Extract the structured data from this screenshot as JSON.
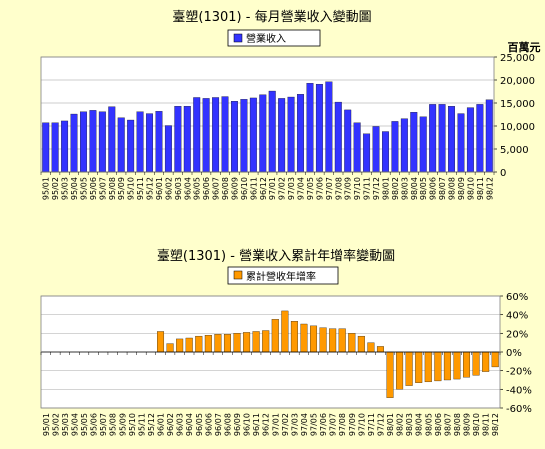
{
  "chart_data": [
    {
      "type": "bar",
      "title": "臺塑(1301) - 每月營業收入變動圖",
      "legend": {
        "label": "營業收入",
        "placement": "top-center"
      },
      "y_unit_label": "百萬元",
      "ylim": [
        0,
        25000
      ],
      "y_ticks": [
        0,
        5000,
        10000,
        15000,
        20000,
        25000
      ],
      "y_tick_labels": [
        "0",
        "5,000",
        "10,000",
        "15,000",
        "20,000",
        "25,000"
      ],
      "grid": true,
      "bar_color": "#3333ff",
      "categories": [
        "95/01",
        "95/02",
        "95/03",
        "95/04",
        "95/05",
        "95/06",
        "95/07",
        "95/08",
        "95/09",
        "95/10",
        "95/11",
        "95/12",
        "96/01",
        "96/02",
        "96/03",
        "96/04",
        "96/05",
        "96/06",
        "96/07",
        "96/08",
        "96/09",
        "96/10",
        "96/11",
        "96/12",
        "97/01",
        "97/02",
        "97/03",
        "97/04",
        "97/05",
        "97/06",
        "97/07",
        "97/08",
        "97/09",
        "97/10",
        "97/11",
        "97/12",
        "98/01",
        "98/02",
        "98/03",
        "98/04",
        "98/05",
        "98/06",
        "98/07",
        "98/08",
        "98/09",
        "98/10",
        "98/11",
        "98/12"
      ],
      "values": [
        10700,
        10700,
        11100,
        12600,
        13100,
        13400,
        13100,
        14200,
        11800,
        11300,
        13100,
        12700,
        13200,
        10100,
        14300,
        14300,
        16200,
        16000,
        16200,
        16400,
        15400,
        15800,
        16100,
        16800,
        17600,
        16000,
        16300,
        16900,
        19300,
        19100,
        19600,
        15200,
        13500,
        10700,
        8300,
        9900,
        8800,
        11000,
        11600,
        13000,
        12000,
        14700,
        14700,
        14300,
        12700,
        14000,
        14700,
        15700
      ]
    },
    {
      "type": "bar",
      "title": "臺塑(1301) -  營業收入累計年增率變動圖",
      "legend": {
        "label": "累計營收年增率",
        "placement": "top-center"
      },
      "ylim": [
        -60,
        60
      ],
      "y_ticks": [
        60,
        40,
        20,
        0,
        -20,
        -40,
        -60
      ],
      "y_tick_labels": [
        "60%",
        "40%",
        "20%",
        "0%",
        "-20%",
        "-40%",
        "-60%"
      ],
      "grid": true,
      "bar_color": "#ff9900",
      "categories": [
        "95/01",
        "95/02",
        "95/03",
        "95/04",
        "95/05",
        "95/06",
        "95/07",
        "95/08",
        "95/09",
        "95/10",
        "95/11",
        "95/12",
        "96/01",
        "96/02",
        "96/03",
        "96/04",
        "96/05",
        "96/06",
        "96/07",
        "96/08",
        "96/09",
        "96/10",
        "96/11",
        "96/12",
        "97/01",
        "97/02",
        "97/03",
        "97/04",
        "97/05",
        "97/06",
        "97/07",
        "97/08",
        "97/09",
        "97/10",
        "97/11",
        "97/12",
        "98/01",
        "98/02",
        "98/03",
        "98/04",
        "98/05",
        "98/06",
        "98/07",
        "98/08",
        "98/09",
        "98/10",
        "98/11",
        "98/12"
      ],
      "values": [
        0,
        0,
        0,
        0,
        0,
        0,
        0,
        0,
        0,
        0,
        0,
        0,
        22,
        9,
        14,
        15,
        17,
        18,
        19,
        19,
        20,
        21,
        22,
        23,
        35,
        44,
        33,
        30,
        28,
        26,
        25,
        25,
        20,
        17,
        10,
        6,
        -49,
        -40,
        -36,
        -33,
        -32,
        -31,
        -30,
        -29,
        -27,
        -25,
        -21,
        -16
      ]
    }
  ]
}
